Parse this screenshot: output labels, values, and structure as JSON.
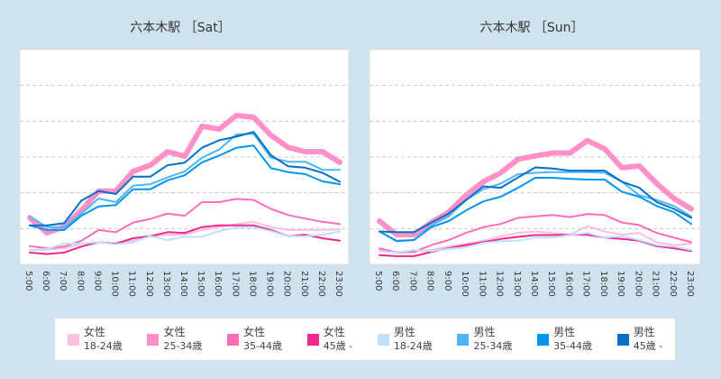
{
  "chart_data": [
    {
      "type": "line",
      "title": "六本木駅 ［Sat］",
      "categories": [
        "5:00",
        "6:00",
        "7:00",
        "8:00",
        "9:00",
        "10:00",
        "11:00",
        "12:00",
        "13:00",
        "14:00",
        "15:00",
        "16:00",
        "17:00",
        "18:00",
        "19:00",
        "20:00",
        "21:00",
        "22:00",
        "23:00"
      ],
      "ylim": [
        0,
        6
      ],
      "grid": true,
      "series": [
        {
          "name": "女性 18-24歳",
          "values": [
            0.4,
            0.41,
            0.45,
            0.58,
            0.62,
            0.58,
            0.66,
            0.79,
            0.83,
            0.83,
            0.96,
            1.04,
            1.13,
            1.19,
            1.04,
            0.96,
            0.96,
            0.96,
            0.98
          ]
        },
        {
          "name": "女性 25-34歳",
          "values": [
            1.3,
            0.88,
            1.05,
            1.51,
            2.05,
            2.05,
            2.6,
            2.77,
            3.15,
            3.02,
            3.86,
            3.78,
            4.16,
            4.11,
            3.61,
            3.27,
            3.15,
            3.15,
            2.85
          ]
        },
        {
          "name": "女性 35-44歳",
          "values": [
            0.51,
            0.45,
            0.5,
            0.66,
            0.96,
            0.9,
            1.17,
            1.27,
            1.42,
            1.36,
            1.74,
            1.74,
            1.83,
            1.8,
            1.55,
            1.38,
            1.28,
            1.19,
            1.13
          ]
        },
        {
          "name": "女性 45歳-",
          "values": [
            0.33,
            0.29,
            0.33,
            0.5,
            0.62,
            0.58,
            0.73,
            0.79,
            0.9,
            0.88,
            1.04,
            1.09,
            1.09,
            1.09,
            0.96,
            0.79,
            0.83,
            0.73,
            0.66
          ]
        },
        {
          "name": "男性 18-24歳",
          "values": [
            0.4,
            0.43,
            0.58,
            0.58,
            0.62,
            0.56,
            0.62,
            0.79,
            0.68,
            0.77,
            0.77,
            0.93,
            1.04,
            1.04,
            0.93,
            0.79,
            0.79,
            0.83,
            0.92
          ]
        },
        {
          "name": "男性 25-34歳",
          "values": [
            1.34,
            1.04,
            1.04,
            1.42,
            1.84,
            1.74,
            2.2,
            2.24,
            2.43,
            2.6,
            2.98,
            3.21,
            3.63,
            3.65,
            2.98,
            2.87,
            2.87,
            2.64,
            2.64
          ]
        },
        {
          "name": "男性 35-44歳",
          "values": [
            1.09,
            0.96,
            0.96,
            1.36,
            1.62,
            1.66,
            2.1,
            2.1,
            2.35,
            2.49,
            2.85,
            3.04,
            3.26,
            3.32,
            2.69,
            2.58,
            2.52,
            2.32,
            2.24
          ]
        },
        {
          "name": "男性 45歳-",
          "values": [
            1.09,
            1.09,
            1.15,
            1.78,
            2.05,
            1.97,
            2.45,
            2.45,
            2.77,
            2.84,
            3.26,
            3.47,
            3.57,
            3.7,
            3.05,
            2.74,
            2.7,
            2.56,
            2.31
          ]
        }
      ]
    },
    {
      "type": "line",
      "title": "六本木駅 ［Sun］",
      "categories": [
        "5:00",
        "6:00",
        "7:00",
        "8:00",
        "9:00",
        "10:00",
        "11:00",
        "12:00",
        "13:00",
        "14:00",
        "15:00",
        "16:00",
        "17:00",
        "18:00",
        "19:00",
        "20:00",
        "21:00",
        "22:00",
        "23:00"
      ],
      "ylim": [
        0,
        6
      ],
      "grid": true,
      "series": [
        {
          "name": "女性 18-24歳",
          "values": [
            0.4,
            0.35,
            0.35,
            0.4,
            0.5,
            0.58,
            0.66,
            0.79,
            0.88,
            0.92,
            0.88,
            0.83,
            1.07,
            0.92,
            0.83,
            0.88,
            0.62,
            0.54,
            0.58
          ]
        },
        {
          "name": "女性 25-34歳",
          "values": [
            1.21,
            0.83,
            0.83,
            1.17,
            1.46,
            1.93,
            2.31,
            2.56,
            2.94,
            3.03,
            3.11,
            3.11,
            3.46,
            3.23,
            2.7,
            2.75,
            2.26,
            1.84,
            1.55
          ]
        },
        {
          "name": "女性 35-44歳",
          "values": [
            0.45,
            0.33,
            0.35,
            0.54,
            0.68,
            0.88,
            1.04,
            1.13,
            1.3,
            1.34,
            1.38,
            1.32,
            1.41,
            1.38,
            1.17,
            1.1,
            0.88,
            0.75,
            0.62
          ]
        },
        {
          "name": "女性 45歳-",
          "values": [
            0.26,
            0.23,
            0.23,
            0.35,
            0.45,
            0.54,
            0.62,
            0.71,
            0.77,
            0.82,
            0.82,
            0.83,
            0.83,
            0.75,
            0.71,
            0.66,
            0.51,
            0.45,
            0.37
          ]
        },
        {
          "name": "男性 18-24歳",
          "values": [
            0.37,
            0.33,
            0.4,
            0.37,
            0.43,
            0.48,
            0.6,
            0.65,
            0.66,
            0.75,
            0.75,
            0.82,
            0.88,
            0.75,
            0.79,
            0.68,
            0.54,
            0.5,
            0.4
          ]
        },
        {
          "name": "男性 25-34歳",
          "values": [
            0.92,
            0.66,
            0.68,
            1.09,
            1.34,
            1.8,
            2.1,
            2.26,
            2.52,
            2.56,
            2.58,
            2.58,
            2.58,
            2.56,
            2.31,
            1.93,
            1.8,
            1.63,
            1.34
          ]
        },
        {
          "name": "男性 35-44歳",
          "values": [
            0.92,
            0.65,
            0.68,
            1.04,
            1.21,
            1.51,
            1.76,
            1.89,
            2.14,
            2.42,
            2.42,
            2.39,
            2.37,
            2.37,
            2.03,
            1.89,
            1.63,
            1.46,
            1.13
          ]
        },
        {
          "name": "男性 45歳-",
          "values": [
            0.92,
            0.9,
            0.9,
            1.17,
            1.42,
            1.8,
            2.18,
            2.14,
            2.43,
            2.71,
            2.68,
            2.62,
            2.62,
            2.62,
            2.31,
            2.14,
            1.74,
            1.55,
            1.3
          ]
        }
      ]
    }
  ],
  "legend": [
    {
      "gender": "女性",
      "age": "18-24歳",
      "color": "#ffc0e0"
    },
    {
      "gender": "女性",
      "age": "25-34歳",
      "color": "#ff90c8"
    },
    {
      "gender": "女性",
      "age": "35-44歳",
      "color": "#ff6eb4"
    },
    {
      "gender": "女性",
      "age": "45歳 -",
      "color": "#f0288a"
    },
    {
      "gender": "男性",
      "age": "18-24歳",
      "color": "#c0e0ff"
    },
    {
      "gender": "男性",
      "age": "25-34歳",
      "color": "#50b4f8"
    },
    {
      "gender": "男性",
      "age": "35-44歳",
      "color": "#0096f0"
    },
    {
      "gender": "男性",
      "age": "45歳 -",
      "color": "#0070c8"
    }
  ],
  "colors": {
    "background": "#cfe3ee"
  }
}
